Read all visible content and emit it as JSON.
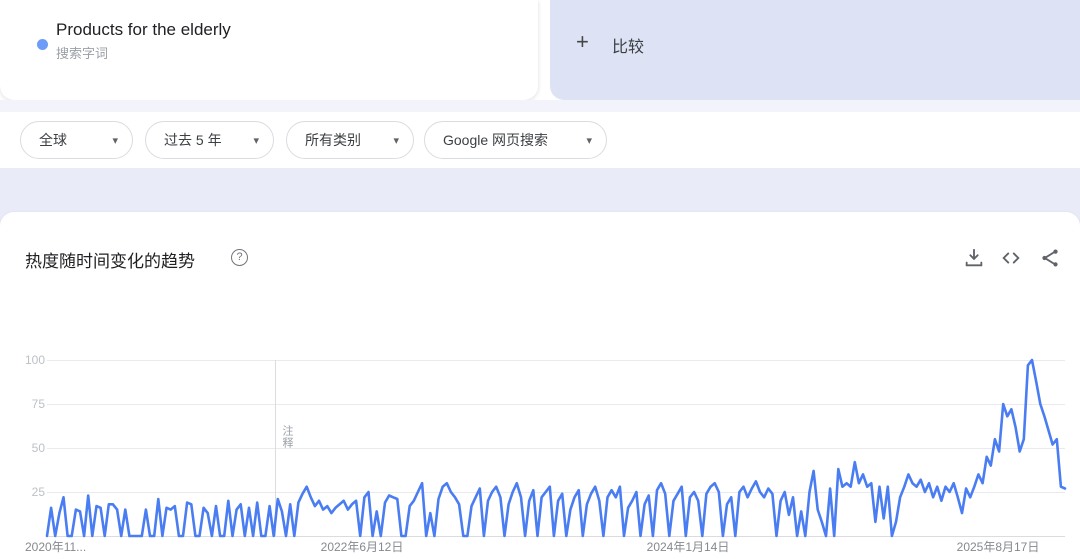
{
  "term_card": {
    "title": "Products for the elderly",
    "subtitle": "搜索字词",
    "dot_color": "#6d9bf8"
  },
  "compare_card": {
    "plus": "+",
    "label": "比较"
  },
  "filters": [
    {
      "label": "全球"
    },
    {
      "label": "过去 5 年"
    },
    {
      "label": "所有类别"
    },
    {
      "label": "Google 网页搜索"
    }
  ],
  "chart_header": {
    "title": "热度随时间变化的趋势",
    "help": "?",
    "actions": [
      "download-icon",
      "embed-icon",
      "share-icon"
    ]
  },
  "chart_data": {
    "type": "line",
    "title": "热度随时间变化的趋势",
    "series_name": "Products for the elderly",
    "line_color": "#4a7df2",
    "ylim": [
      0,
      100
    ],
    "y_ticks": [
      "100",
      "75",
      "50",
      "25"
    ],
    "x_tick_labels": [
      "2020年11...",
      "2022年6月12日",
      "2024年1月14日",
      "2025年8月17日"
    ],
    "grid": true,
    "legend": false,
    "annotation": {
      "x_fraction": 0.224,
      "label": "注释"
    },
    "values": [
      0,
      16,
      0,
      13,
      22,
      0,
      0,
      15,
      14,
      0,
      23,
      0,
      17,
      16,
      0,
      18,
      18,
      15,
      0,
      15,
      0,
      0,
      0,
      0,
      15,
      0,
      0,
      21,
      0,
      16,
      15,
      17,
      0,
      0,
      19,
      18,
      0,
      0,
      16,
      13,
      0,
      17,
      0,
      0,
      20,
      0,
      15,
      18,
      0,
      16,
      0,
      19,
      0,
      0,
      17,
      0,
      21,
      14,
      0,
      18,
      0,
      19,
      24,
      28,
      22,
      17,
      20,
      15,
      17,
      13,
      16,
      18,
      20,
      15,
      18,
      20,
      0,
      22,
      25,
      0,
      14,
      0,
      19,
      23,
      22,
      21,
      0,
      0,
      17,
      20,
      25,
      30,
      0,
      13,
      0,
      21,
      28,
      30,
      25,
      22,
      18,
      0,
      0,
      17,
      22,
      27,
      0,
      20,
      25,
      28,
      22,
      0,
      18,
      25,
      30,
      22,
      0,
      20,
      26,
      0,
      22,
      25,
      28,
      0,
      20,
      24,
      0,
      15,
      22,
      26,
      0,
      18,
      24,
      28,
      20,
      0,
      22,
      26,
      22,
      28,
      0,
      16,
      20,
      25,
      0,
      18,
      23,
      0,
      26,
      30,
      24,
      0,
      20,
      24,
      28,
      0,
      22,
      25,
      20,
      0,
      24,
      28,
      30,
      25,
      0,
      18,
      22,
      0,
      25,
      28,
      22,
      27,
      31,
      25,
      22,
      27,
      24,
      0,
      20,
      25,
      12,
      22,
      0,
      14,
      0,
      25,
      37,
      15,
      8,
      0,
      27,
      0,
      38,
      28,
      30,
      28,
      42,
      30,
      35,
      28,
      30,
      8,
      28,
      10,
      28,
      0,
      8,
      22,
      28,
      35,
      30,
      28,
      32,
      25,
      30,
      22,
      28,
      20,
      28,
      25,
      30,
      22,
      13,
      27,
      22,
      28,
      35,
      30,
      45,
      40,
      55,
      48,
      75,
      68,
      72,
      62,
      48,
      55,
      97,
      100,
      88,
      75,
      68,
      60,
      52,
      55,
      28,
      27
    ]
  }
}
